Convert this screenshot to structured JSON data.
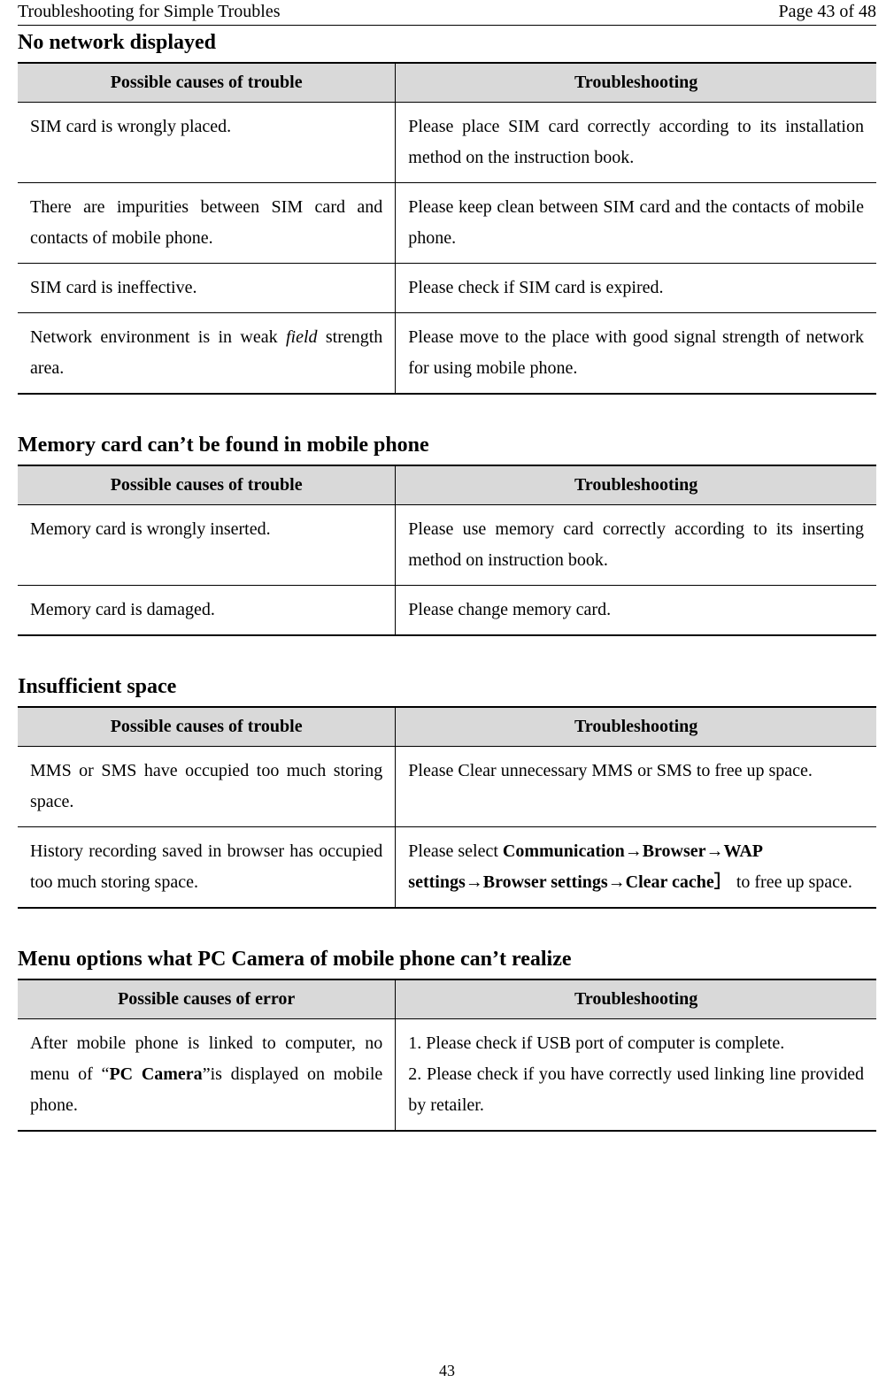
{
  "header": {
    "left": "Troubleshooting for Simple Troubles",
    "right": "Page 43 of 48"
  },
  "sections": [
    {
      "title": "No network displayed",
      "columns": [
        "Possible causes of trouble",
        "Troubleshooting"
      ],
      "rows": [
        {
          "cause": "SIM card is wrongly placed.",
          "fix_parts": [
            {
              "text": "Please place SIM card correctly according to its installation method on the instruction book."
            }
          ],
          "fix_justify": true
        },
        {
          "cause_parts": [
            {
              "text": "There are impurities between SIM card and contacts of mobile phone."
            }
          ],
          "cause_justify": true,
          "fix_parts": [
            {
              "text": "Please keep clean between SIM card and the contacts of mobile phone."
            }
          ],
          "fix_justify": true
        },
        {
          "cause": "SIM card is ineffective.",
          "fix_parts": [
            {
              "text": "Please check if SIM card is expired."
            }
          ]
        },
        {
          "cause_parts": [
            {
              "text": "Network environment is in weak "
            },
            {
              "text": "field",
              "italic": true
            },
            {
              "text": " strength area."
            }
          ],
          "cause_justify": true,
          "fix_parts": [
            {
              "text": "Please move to the place with good signal strength of network for using mobile phone."
            }
          ],
          "fix_justify": true
        }
      ]
    },
    {
      "title": "Memory card can’t be found in mobile phone",
      "columns": [
        "Possible causes of trouble",
        "Troubleshooting"
      ],
      "rows": [
        {
          "cause": "Memory card is wrongly inserted.",
          "fix_parts": [
            {
              "text": "Please use memory card correctly according to its inserting method on instruction book."
            }
          ],
          "fix_justify": true
        },
        {
          "cause": "Memory card is damaged.",
          "fix_parts": [
            {
              "text": "Please change memory card."
            }
          ]
        }
      ]
    },
    {
      "title": "Insufficient space",
      "columns": [
        "Possible causes of trouble",
        "Troubleshooting"
      ],
      "rows": [
        {
          "cause_parts": [
            {
              "text": "MMS or SMS have occupied too much storing space."
            }
          ],
          "cause_justify": true,
          "fix_parts": [
            {
              "text": "Please Clear unnecessary MMS or SMS to free up space."
            }
          ],
          "fix_justify": true
        },
        {
          "cause_parts": [
            {
              "text": "History recording saved in browser has occupied too much storing space."
            }
          ],
          "cause_justify": true,
          "fix_parts": [
            {
              "text": "Please select "
            },
            {
              "text": "Communication→Browser→WAP settings→Browser settings→Clear cache］",
              "bold": true
            },
            {
              "text": " to free up space."
            }
          ]
        }
      ]
    },
    {
      "title": "Menu options what PC Camera of mobile phone can’t realize",
      "columns": [
        "Possible causes of error",
        "Troubleshooting"
      ],
      "rows": [
        {
          "cause_parts": [
            {
              "text": "After mobile phone is linked to computer, no menu of “"
            },
            {
              "text": "PC Camera",
              "bold": true
            },
            {
              "text": "”is displayed on mobile phone."
            }
          ],
          "cause_justify": true,
          "fix_parts": [
            {
              "text": "1. Please check if USB port of computer is complete."
            },
            {
              "br": true
            },
            {
              "text": "2. Please check if you have correctly used linking line provided by retailer."
            }
          ],
          "fix_justify": true
        }
      ]
    }
  ],
  "footer": {
    "page_number": "43"
  }
}
